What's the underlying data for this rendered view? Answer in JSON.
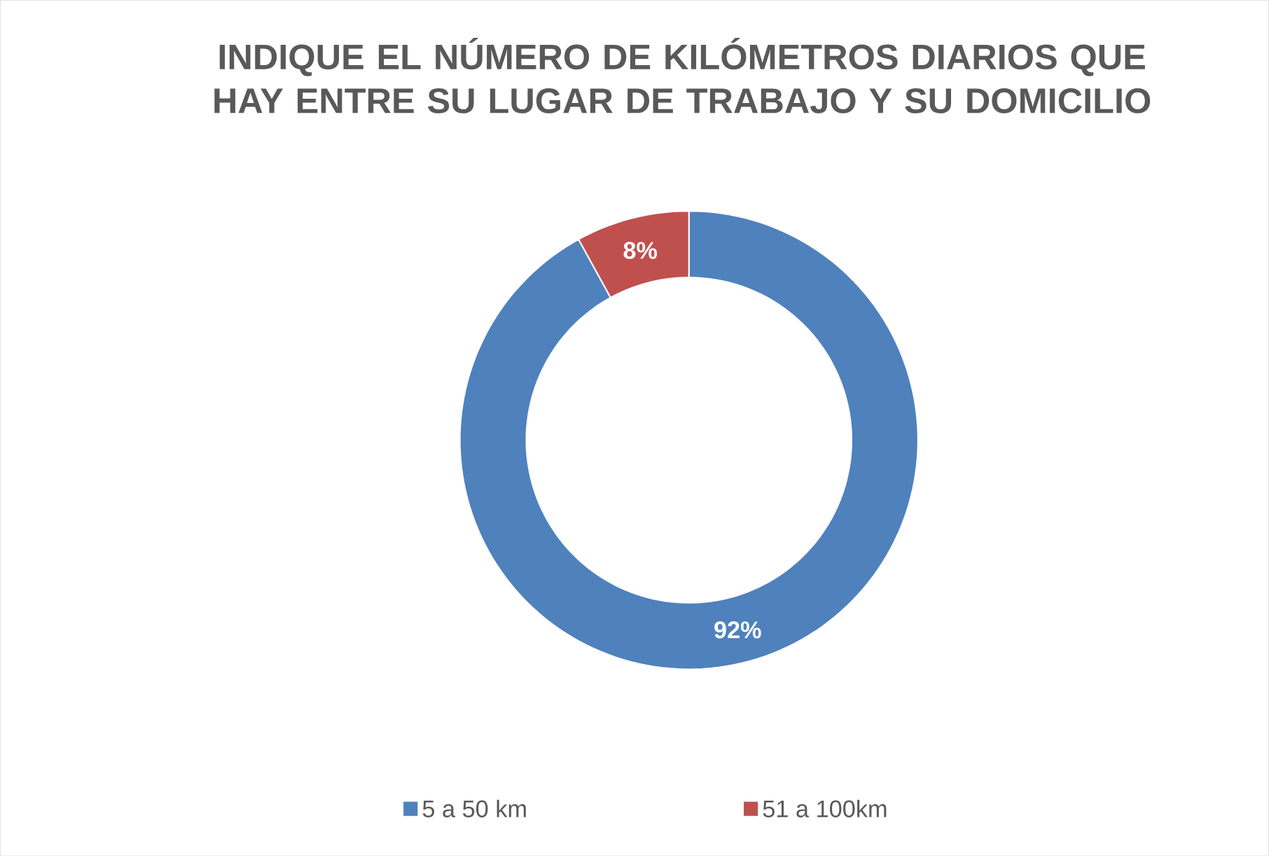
{
  "chart_data": {
    "type": "donut",
    "title": "INDIQUE EL NÚMERO DE KILÓMETROS DIARIOS QUE HAY ENTRE SU LUGAR DE TRABAJO Y SU DOMICILIO",
    "categories": [
      "5 a 50 km",
      "51 a 100km"
    ],
    "values": [
      92,
      8
    ],
    "value_labels": [
      "92%",
      "8%"
    ],
    "colors": [
      "#4f81bd",
      "#c0504d"
    ],
    "legend": "bottom"
  }
}
